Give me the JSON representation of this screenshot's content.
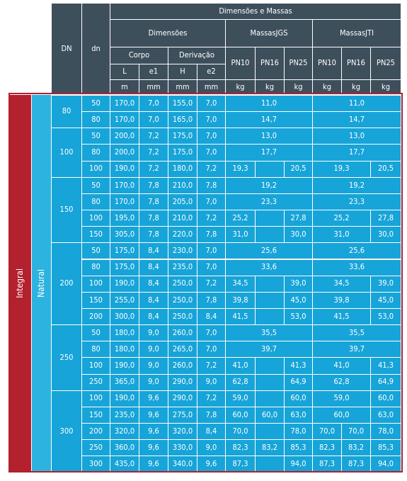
{
  "header": {
    "title": "Dimensões e Massas",
    "dn_upper": "DN",
    "dn_lower": "dn",
    "dimensoes": "Dimensões",
    "massas_jgs": {
      "line1": "Massas",
      "line2": "JGS"
    },
    "massas_jti": {
      "line1": "Massas",
      "line2": "JTI"
    },
    "corpo": "Corpo",
    "derivacao": "Derivação",
    "dim_cols": [
      "L",
      "e1",
      "H",
      "e2"
    ],
    "pn": [
      "PN10",
      "PN16",
      "PN25",
      "PN10",
      "PN16",
      "PN25"
    ],
    "units": [
      "m",
      "mm",
      "mm",
      "mm",
      "kg",
      "kg",
      "kg",
      "kg",
      "kg",
      "kg"
    ]
  },
  "side": {
    "outer": "Integral",
    "inner": "Natural"
  },
  "groups": [
    {
      "DN": "80",
      "rows": [
        {
          "dn": "50",
          "dims": [
            "170,0",
            "7,0",
            "155,0",
            "7,0"
          ],
          "jgs": [
            "11,0"
          ],
          "jti": [
            "11,0"
          ]
        },
        {
          "dn": "80",
          "dims": [
            "170,0",
            "7,0",
            "165,0",
            "7,0"
          ],
          "jgs": [
            "14,7"
          ],
          "jti": [
            "14,7"
          ]
        }
      ]
    },
    {
      "DN": "100",
      "rows": [
        {
          "dn": "50",
          "dims": [
            "200,0",
            "7,2",
            "175,0",
            "7,0"
          ],
          "jgs": [
            "13,0"
          ],
          "jti": [
            "13,0"
          ]
        },
        {
          "dn": "80",
          "dims": [
            "200,0",
            "7,2",
            "175,0",
            "7,0"
          ],
          "jgs": [
            "17,7"
          ],
          "jti": [
            "17,7"
          ]
        },
        {
          "dn": "100",
          "dims": [
            "190,0",
            "7,2",
            "180,0",
            "7,2"
          ],
          "jgs": [
            "19,3",
            null,
            "20,5"
          ],
          "jti": [
            "19,3",
            "20,5"
          ]
        }
      ]
    },
    {
      "DN": "150",
      "rows": [
        {
          "dn": "50",
          "dims": [
            "170,0",
            "7,8",
            "210,0",
            "7,8"
          ],
          "jgs": [
            "19,2"
          ],
          "jti": [
            "19,2"
          ]
        },
        {
          "dn": "80",
          "dims": [
            "170,0",
            "7,8",
            "205,0",
            "7,0"
          ],
          "jgs": [
            "23,3"
          ],
          "jti": [
            "23,3"
          ]
        },
        {
          "dn": "100",
          "dims": [
            "195,0",
            "7,8",
            "210,0",
            "7,2"
          ],
          "jgs": [
            "25,2",
            null,
            "27,8"
          ],
          "jti": [
            "25,2",
            "27,8"
          ]
        },
        {
          "dn": "150",
          "dims": [
            "305,0",
            "7,8",
            "220,0",
            "7,8"
          ],
          "jgs": [
            "31,0",
            null,
            "30,0"
          ],
          "jti": [
            "31,0",
            "30,0"
          ]
        }
      ]
    },
    {
      "DN": "200",
      "rows": [
        {
          "dn": "50",
          "dims": [
            "175,0",
            "8,4",
            "230,0",
            "7,0"
          ],
          "jgs": [
            "25,6"
          ],
          "jti": [
            "25,6"
          ]
        },
        {
          "dn": "80",
          "dims": [
            "175,0",
            "8,4",
            "235,0",
            "7,0"
          ],
          "jgs": [
            "33,6"
          ],
          "jti": [
            "33,6"
          ]
        },
        {
          "dn": "100",
          "dims": [
            "190,0",
            "8,4",
            "250,0",
            "7,2"
          ],
          "jgs": [
            "34,5",
            null,
            "39,0"
          ],
          "jti": [
            "34,5",
            "39,0"
          ]
        },
        {
          "dn": "150",
          "dims": [
            "255,0",
            "8,4",
            "250,0",
            "7,8"
          ],
          "jgs": [
            "39,8",
            null,
            "45,0"
          ],
          "jti": [
            "39,8",
            "45,0"
          ]
        },
        {
          "dn": "200",
          "dims": [
            "300,0",
            "8,4",
            "250,0",
            "8,4"
          ],
          "jgs": [
            "41,5",
            null,
            "53,0"
          ],
          "jti": [
            "41,5",
            "53,0"
          ]
        }
      ]
    },
    {
      "DN": "250",
      "rows": [
        {
          "dn": "50",
          "dims": [
            "180,0",
            "9,0",
            "260,0",
            "7,0"
          ],
          "jgs": [
            "35,5"
          ],
          "jti": [
            "35,5"
          ]
        },
        {
          "dn": "80",
          "dims": [
            "180,0",
            "9,0",
            "265,0",
            "7,0"
          ],
          "jgs": [
            "39,7"
          ],
          "jti": [
            "39,7"
          ]
        },
        {
          "dn": "100",
          "dims": [
            "190,0",
            "9,0",
            "260,0",
            "7,2"
          ],
          "jgs": [
            "41,0",
            null,
            "41,3"
          ],
          "jti": [
            "41,0",
            "41,3"
          ]
        },
        {
          "dn": "250",
          "dims": [
            "365,0",
            "9,0",
            "290,0",
            "9,0"
          ],
          "jgs": [
            "62,8",
            null,
            "64,9"
          ],
          "jti": [
            "62,8",
            "64,9"
          ]
        }
      ]
    },
    {
      "DN": "300",
      "rows": [
        {
          "dn": "100",
          "dims": [
            "190,0",
            "9,6",
            "290,0",
            "7,2"
          ],
          "jgs": [
            "59,0",
            null,
            "60,0"
          ],
          "jti": [
            "59,0",
            "60,0"
          ]
        },
        {
          "dn": "150",
          "dims": [
            "235,0",
            "9,6",
            "275,0",
            "7,8"
          ],
          "jgs": [
            "60,0",
            "60,0",
            "63,0"
          ],
          "jti": [
            "60,0",
            "63,0"
          ]
        },
        {
          "dn": "200",
          "dims": [
            "320,0",
            "9,6",
            "320,0",
            "8,4"
          ],
          "jgs": [
            "70,0",
            null,
            "78,0"
          ],
          "jti": [
            "70,0",
            "70,0",
            "78,0"
          ]
        },
        {
          "dn": "250",
          "dims": [
            "360,0",
            "9,6",
            "330,0",
            "9,0"
          ],
          "jgs": [
            "82,3",
            "83,2",
            "85,3"
          ],
          "jti": [
            "82,3",
            "83,2",
            "85,3"
          ]
        },
        {
          "dn": "300",
          "dims": [
            "435,0",
            "9,6",
            "340,0",
            "9,6"
          ],
          "jgs": [
            "87,3",
            null,
            "94,0"
          ],
          "jti": [
            "87,3",
            "87,3",
            "94,0"
          ]
        }
      ]
    }
  ]
}
